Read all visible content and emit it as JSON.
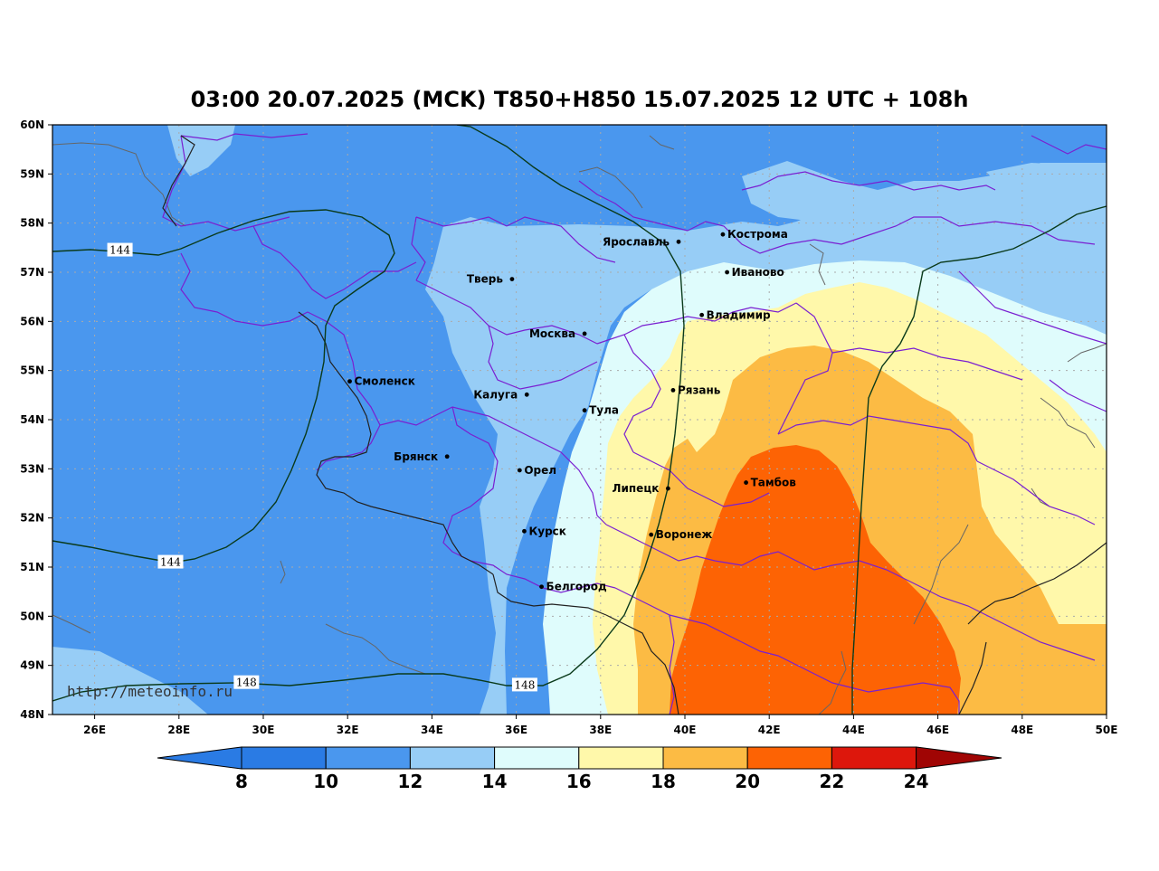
{
  "title": "03:00 20.07.2025 (MCK) T850+H850 15.07.2025 12 UTC + 108h",
  "watermark": "http://meteoinfo.ru",
  "axes": {
    "lon_min": 25,
    "lon_max": 50,
    "lat_min": 48,
    "lat_max": 60,
    "lon_ticks": [
      "26E",
      "28E",
      "30E",
      "32E",
      "34E",
      "36E",
      "38E",
      "40E",
      "42E",
      "44E",
      "46E",
      "48E",
      "50E"
    ],
    "lat_ticks": [
      "48N",
      "49N",
      "50N",
      "51N",
      "52N",
      "53N",
      "54N",
      "55N",
      "56N",
      "57N",
      "58N",
      "59N",
      "60N"
    ]
  },
  "cities": [
    {
      "name": "Кострома",
      "lon": 40.9,
      "lat": 57.77
    },
    {
      "name": "Ярославль",
      "lon": 39.85,
      "lat": 57.62
    },
    {
      "name": "Иваново",
      "lon": 41.0,
      "lat": 57.0
    },
    {
      "name": "Тверь",
      "lon": 35.9,
      "lat": 56.86
    },
    {
      "name": "Владимир",
      "lon": 40.4,
      "lat": 56.13
    },
    {
      "name": "Москва",
      "lon": 37.62,
      "lat": 55.75
    },
    {
      "name": "Смоленск",
      "lon": 32.05,
      "lat": 54.78
    },
    {
      "name": "Рязань",
      "lon": 39.72,
      "lat": 54.6
    },
    {
      "name": "Калуга",
      "lon": 36.25,
      "lat": 54.51
    },
    {
      "name": "Тула",
      "lon": 37.62,
      "lat": 54.19
    },
    {
      "name": "Брянск",
      "lon": 34.36,
      "lat": 53.25
    },
    {
      "name": "Орел",
      "lon": 36.08,
      "lat": 52.97
    },
    {
      "name": "Липецк",
      "lon": 39.6,
      "lat": 52.6
    },
    {
      "name": "Тамбов",
      "lon": 41.45,
      "lat": 52.72
    },
    {
      "name": "Курск",
      "lon": 36.19,
      "lat": 51.73
    },
    {
      "name": "Воронеж",
      "lon": 39.2,
      "lat": 51.66
    },
    {
      "name": "Белгород",
      "lon": 36.6,
      "lat": 50.6
    }
  ],
  "contour_labels": [
    {
      "text": "144",
      "lon": 26.6,
      "lat": 57.45
    },
    {
      "text": "144",
      "lon": 27.8,
      "lat": 51.1
    },
    {
      "text": "148",
      "lon": 29.6,
      "lat": 48.65
    },
    {
      "text": "148",
      "lon": 36.2,
      "lat": 48.6
    }
  ],
  "colorbar": {
    "ticks": [
      "8",
      "10",
      "12",
      "14",
      "16",
      "18",
      "20",
      "22",
      "24"
    ],
    "colors": [
      "#2a7be4",
      "#4a97ee",
      "#97cdf6",
      "#dffcfc",
      "#fff8aa",
      "#fcbb44",
      "#fd6304",
      "#dd170c",
      "#a00504"
    ]
  },
  "fill_colors": {
    "deep_blue": "#2a7be4",
    "mid_blue": "#4a97ee",
    "light_blue": "#97cdf6",
    "pale_cyan": "#dffcfc",
    "yellow": "#fff8aa",
    "orange": "#fcbb44",
    "dark_orange": "#fd6304",
    "border_purple": "#7a1fd1",
    "coast_grey": "#666666",
    "contour_black": "#000000"
  }
}
